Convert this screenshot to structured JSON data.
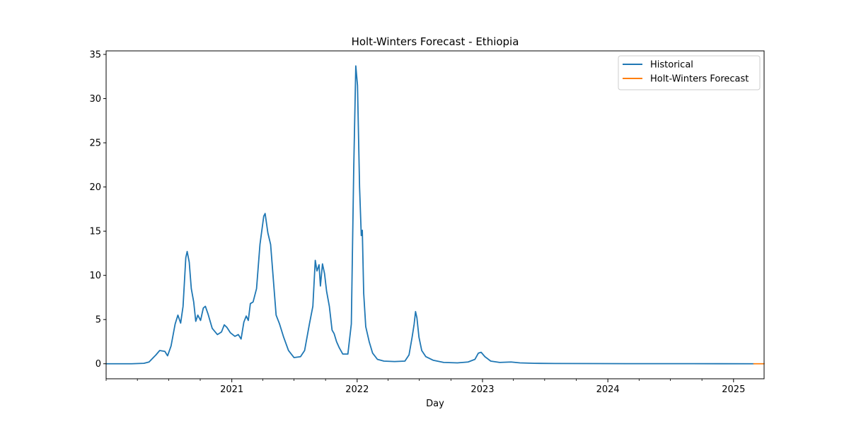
{
  "chart_data": {
    "type": "line",
    "title": "Holt-Winters Forecast - Ethiopia",
    "xlabel": "Day",
    "ylabel": "",
    "x_type": "date",
    "xlim": [
      "2020-01-01",
      "2025-03-31"
    ],
    "ylim": [
      -1.7,
      35.4
    ],
    "x_ticks": [
      {
        "date": "2021-01-01",
        "label": "2021"
      },
      {
        "date": "2022-01-01",
        "label": "2022"
      },
      {
        "date": "2023-01-01",
        "label": "2023"
      },
      {
        "date": "2024-01-01",
        "label": "2024"
      },
      {
        "date": "2025-01-01",
        "label": "2025"
      }
    ],
    "y_ticks": [
      0,
      5,
      10,
      15,
      20,
      25,
      30,
      35
    ],
    "grid": false,
    "legend_position": "top-right",
    "series": [
      {
        "name": "Historical",
        "color": "#1f77b4",
        "points": [
          [
            "2020-01-01",
            0.0
          ],
          [
            "2020-03-15",
            0.0
          ],
          [
            "2020-04-20",
            0.05
          ],
          [
            "2020-05-05",
            0.2
          ],
          [
            "2020-05-25",
            1.0
          ],
          [
            "2020-06-05",
            1.5
          ],
          [
            "2020-06-20",
            1.4
          ],
          [
            "2020-06-28",
            0.9
          ],
          [
            "2020-07-08",
            2.0
          ],
          [
            "2020-07-20",
            4.5
          ],
          [
            "2020-07-28",
            5.5
          ],
          [
            "2020-08-05",
            4.6
          ],
          [
            "2020-08-12",
            6.5
          ],
          [
            "2020-08-20",
            12.0
          ],
          [
            "2020-08-24",
            12.7
          ],
          [
            "2020-08-30",
            11.5
          ],
          [
            "2020-09-05",
            8.5
          ],
          [
            "2020-09-12",
            7.0
          ],
          [
            "2020-09-18",
            4.8
          ],
          [
            "2020-09-24",
            5.5
          ],
          [
            "2020-10-02",
            4.9
          ],
          [
            "2020-10-10",
            6.3
          ],
          [
            "2020-10-16",
            6.5
          ],
          [
            "2020-10-24",
            5.6
          ],
          [
            "2020-11-05",
            4.0
          ],
          [
            "2020-11-20",
            3.3
          ],
          [
            "2020-12-02",
            3.6
          ],
          [
            "2020-12-10",
            4.4
          ],
          [
            "2020-12-18",
            4.1
          ],
          [
            "2020-12-28",
            3.5
          ],
          [
            "2021-01-10",
            3.1
          ],
          [
            "2021-01-20",
            3.3
          ],
          [
            "2021-01-28",
            2.8
          ],
          [
            "2021-02-05",
            4.7
          ],
          [
            "2021-02-12",
            5.4
          ],
          [
            "2021-02-18",
            4.9
          ],
          [
            "2021-02-24",
            6.8
          ],
          [
            "2021-03-04",
            7.0
          ],
          [
            "2021-03-14",
            8.5
          ],
          [
            "2021-03-24",
            13.5
          ],
          [
            "2021-04-04",
            16.7
          ],
          [
            "2021-04-08",
            17.0
          ],
          [
            "2021-04-16",
            14.8
          ],
          [
            "2021-04-24",
            13.5
          ],
          [
            "2021-05-02",
            9.5
          ],
          [
            "2021-05-10",
            5.5
          ],
          [
            "2021-05-20",
            4.5
          ],
          [
            "2021-06-01",
            3.0
          ],
          [
            "2021-06-15",
            1.5
          ],
          [
            "2021-07-01",
            0.7
          ],
          [
            "2021-07-20",
            0.8
          ],
          [
            "2021-08-01",
            1.5
          ],
          [
            "2021-08-15",
            4.5
          ],
          [
            "2021-08-25",
            6.5
          ],
          [
            "2021-09-01",
            11.7
          ],
          [
            "2021-09-06",
            10.5
          ],
          [
            "2021-09-12",
            11.2
          ],
          [
            "2021-09-16",
            8.8
          ],
          [
            "2021-09-22",
            11.3
          ],
          [
            "2021-09-28",
            10.2
          ],
          [
            "2021-10-04",
            8.2
          ],
          [
            "2021-10-12",
            6.5
          ],
          [
            "2021-10-20",
            3.8
          ],
          [
            "2021-10-26",
            3.4
          ],
          [
            "2021-11-02",
            2.5
          ],
          [
            "2021-11-10",
            1.8
          ],
          [
            "2021-11-20",
            1.1
          ],
          [
            "2021-12-05",
            1.1
          ],
          [
            "2021-12-15",
            4.5
          ],
          [
            "2021-12-22",
            22.0
          ],
          [
            "2021-12-28",
            33.7
          ],
          [
            "2022-01-02",
            31.5
          ],
          [
            "2022-01-08",
            20.0
          ],
          [
            "2022-01-13",
            14.5
          ],
          [
            "2022-01-16",
            15.1
          ],
          [
            "2022-01-20",
            8.0
          ],
          [
            "2022-01-26",
            4.2
          ],
          [
            "2022-02-05",
            2.5
          ],
          [
            "2022-02-15",
            1.2
          ],
          [
            "2022-03-01",
            0.5
          ],
          [
            "2022-03-20",
            0.3
          ],
          [
            "2022-04-20",
            0.25
          ],
          [
            "2022-05-20",
            0.3
          ],
          [
            "2022-06-01",
            1.0
          ],
          [
            "2022-06-10",
            3.0
          ],
          [
            "2022-06-16",
            4.5
          ],
          [
            "2022-06-20",
            5.9
          ],
          [
            "2022-06-24",
            5.2
          ],
          [
            "2022-06-30",
            3.0
          ],
          [
            "2022-07-08",
            1.5
          ],
          [
            "2022-07-20",
            0.8
          ],
          [
            "2022-08-10",
            0.4
          ],
          [
            "2022-09-10",
            0.15
          ],
          [
            "2022-10-20",
            0.1
          ],
          [
            "2022-11-20",
            0.2
          ],
          [
            "2022-12-10",
            0.5
          ],
          [
            "2022-12-20",
            1.2
          ],
          [
            "2022-12-28",
            1.3
          ],
          [
            "2023-01-08",
            0.8
          ],
          [
            "2023-01-25",
            0.3
          ],
          [
            "2023-02-20",
            0.15
          ],
          [
            "2023-03-25",
            0.2
          ],
          [
            "2023-04-20",
            0.1
          ],
          [
            "2023-06-01",
            0.05
          ],
          [
            "2023-08-01",
            0.03
          ],
          [
            "2023-12-01",
            0.02
          ],
          [
            "2024-03-01",
            0.01
          ],
          [
            "2024-09-01",
            0.01
          ],
          [
            "2025-03-01",
            0.0
          ]
        ]
      },
      {
        "name": "Holt-Winters Forecast",
        "color": "#ff7f0e",
        "points": [
          [
            "2025-03-01",
            0.0
          ],
          [
            "2025-03-31",
            0.0
          ]
        ]
      }
    ]
  }
}
